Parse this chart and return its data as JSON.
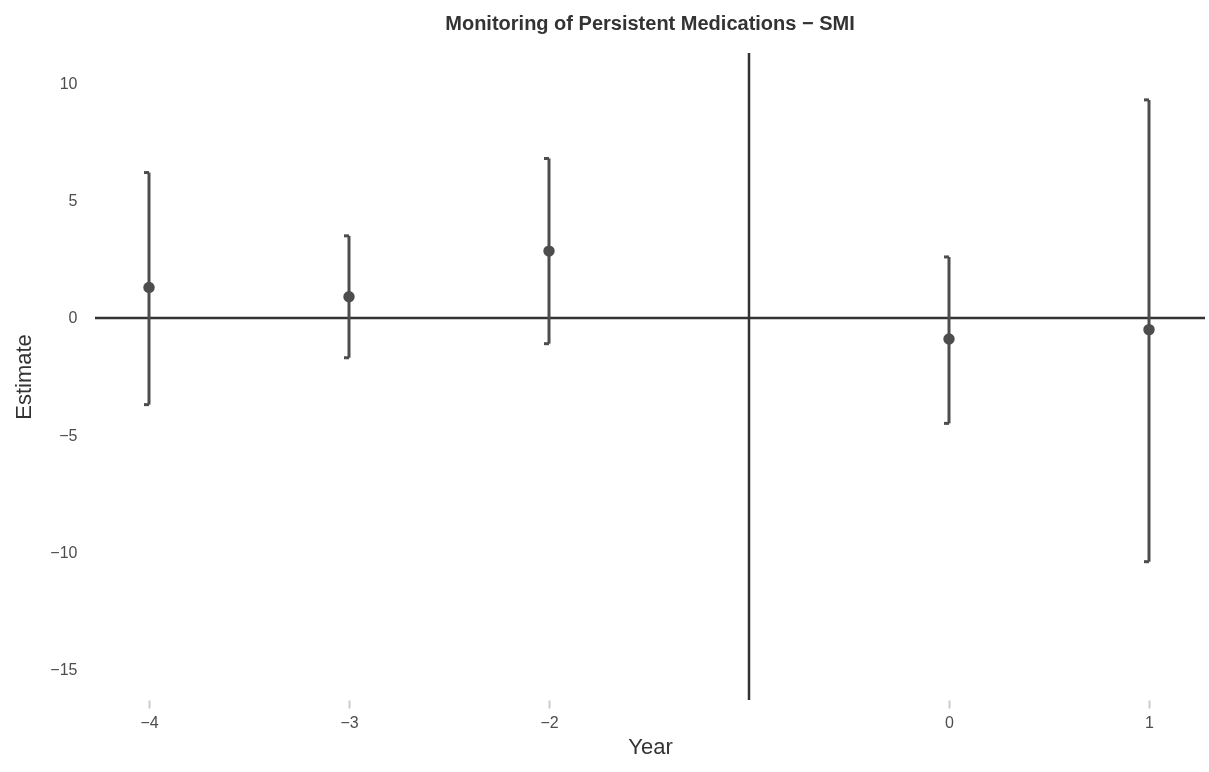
{
  "chart_data": {
    "type": "scatter",
    "title": "Monitoring of Persistent Medications − SMI",
    "xlabel": "Year",
    "ylabel": "Estimate",
    "x": [
      -4,
      -3,
      -2,
      0,
      1
    ],
    "series": [
      {
        "color": "#4d4d4d",
        "values": [
          1.3,
          0.9,
          2.85,
          -0.9,
          -0.5
        ],
        "errors": [
          [
            -3.7,
            6.2
          ],
          [
            -1.7,
            3.5
          ],
          [
            -1.1,
            6.8
          ],
          [
            -4.5,
            2.6
          ],
          [
            -10.4,
            9.3
          ]
        ]
      }
    ],
    "xlim": [
      -4.27,
      1.28
    ],
    "ylim": [
      -16.3,
      11.3
    ],
    "xticks": [
      {
        "value": -4,
        "label": "−4"
      },
      {
        "value": -3,
        "label": "−3"
      },
      {
        "value": -2,
        "label": "−2"
      },
      0,
      1
    ],
    "yticks": [
      {
        "value": -15,
        "label": "−15"
      },
      {
        "value": -10,
        "label": "−10"
      },
      {
        "value": -5,
        "label": "−5"
      },
      0,
      5,
      10
    ],
    "ref_lines": [
      {
        "axis": "y",
        "value": 0,
        "color": "#333333"
      },
      {
        "axis": "x",
        "value": -1,
        "color": "#333333"
      }
    ],
    "grid": false,
    "marker": "circle"
  }
}
